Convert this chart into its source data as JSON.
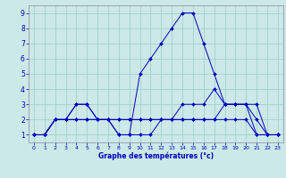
{
  "xlabel": "Graphe des températures (°c)",
  "bg_color": "#cce8e8",
  "line_color": "#0000bb",
  "grid_color": "#99cccc",
  "xlim": [
    -0.5,
    23.5
  ],
  "ylim": [
    0.5,
    9.5
  ],
  "xticks": [
    0,
    1,
    2,
    3,
    4,
    5,
    6,
    7,
    8,
    9,
    10,
    11,
    12,
    13,
    14,
    15,
    16,
    17,
    18,
    19,
    20,
    21,
    22,
    23
  ],
  "yticks": [
    1,
    2,
    3,
    4,
    5,
    6,
    7,
    8,
    9
  ],
  "lines": [
    {
      "x": [
        0,
        1,
        2,
        3,
        4,
        5,
        6,
        7,
        8,
        9,
        10,
        11,
        12,
        13,
        14,
        15,
        16,
        17,
        18,
        19,
        20,
        21,
        22,
        23
      ],
      "y": [
        1,
        1,
        2,
        2,
        2,
        2,
        2,
        2,
        1,
        1,
        1,
        1,
        2,
        2,
        2,
        2,
        2,
        2,
        2,
        2,
        2,
        1,
        1,
        1
      ]
    },
    {
      "x": [
        0,
        1,
        2,
        3,
        4,
        5,
        6,
        7,
        8,
        9,
        10,
        11,
        12,
        13,
        14,
        15,
        16,
        17,
        18,
        19,
        20,
        21,
        22,
        23
      ],
      "y": [
        1,
        1,
        2,
        2,
        2,
        2,
        2,
        2,
        2,
        2,
        2,
        2,
        2,
        2,
        2,
        2,
        2,
        2,
        3,
        3,
        3,
        2,
        1,
        1
      ]
    },
    {
      "x": [
        0,
        1,
        2,
        3,
        4,
        5,
        6,
        7,
        8,
        9,
        10,
        11,
        12,
        13,
        14,
        15,
        16,
        17,
        18,
        19,
        20,
        21,
        22,
        23
      ],
      "y": [
        1,
        1,
        2,
        2,
        3,
        3,
        2,
        2,
        2,
        2,
        2,
        2,
        2,
        2,
        3,
        3,
        3,
        4,
        3,
        3,
        3,
        3,
        1,
        1
      ]
    },
    {
      "x": [
        0,
        1,
        2,
        3,
        4,
        5,
        6,
        7,
        8,
        9,
        10,
        11,
        12,
        13,
        14,
        15,
        16,
        17,
        18,
        19,
        20,
        21,
        22,
        23
      ],
      "y": [
        1,
        1,
        2,
        2,
        3,
        3,
        2,
        2,
        1,
        1,
        5,
        6,
        7,
        8,
        9,
        9,
        7,
        5,
        3,
        3,
        3,
        1,
        1,
        1
      ]
    }
  ]
}
